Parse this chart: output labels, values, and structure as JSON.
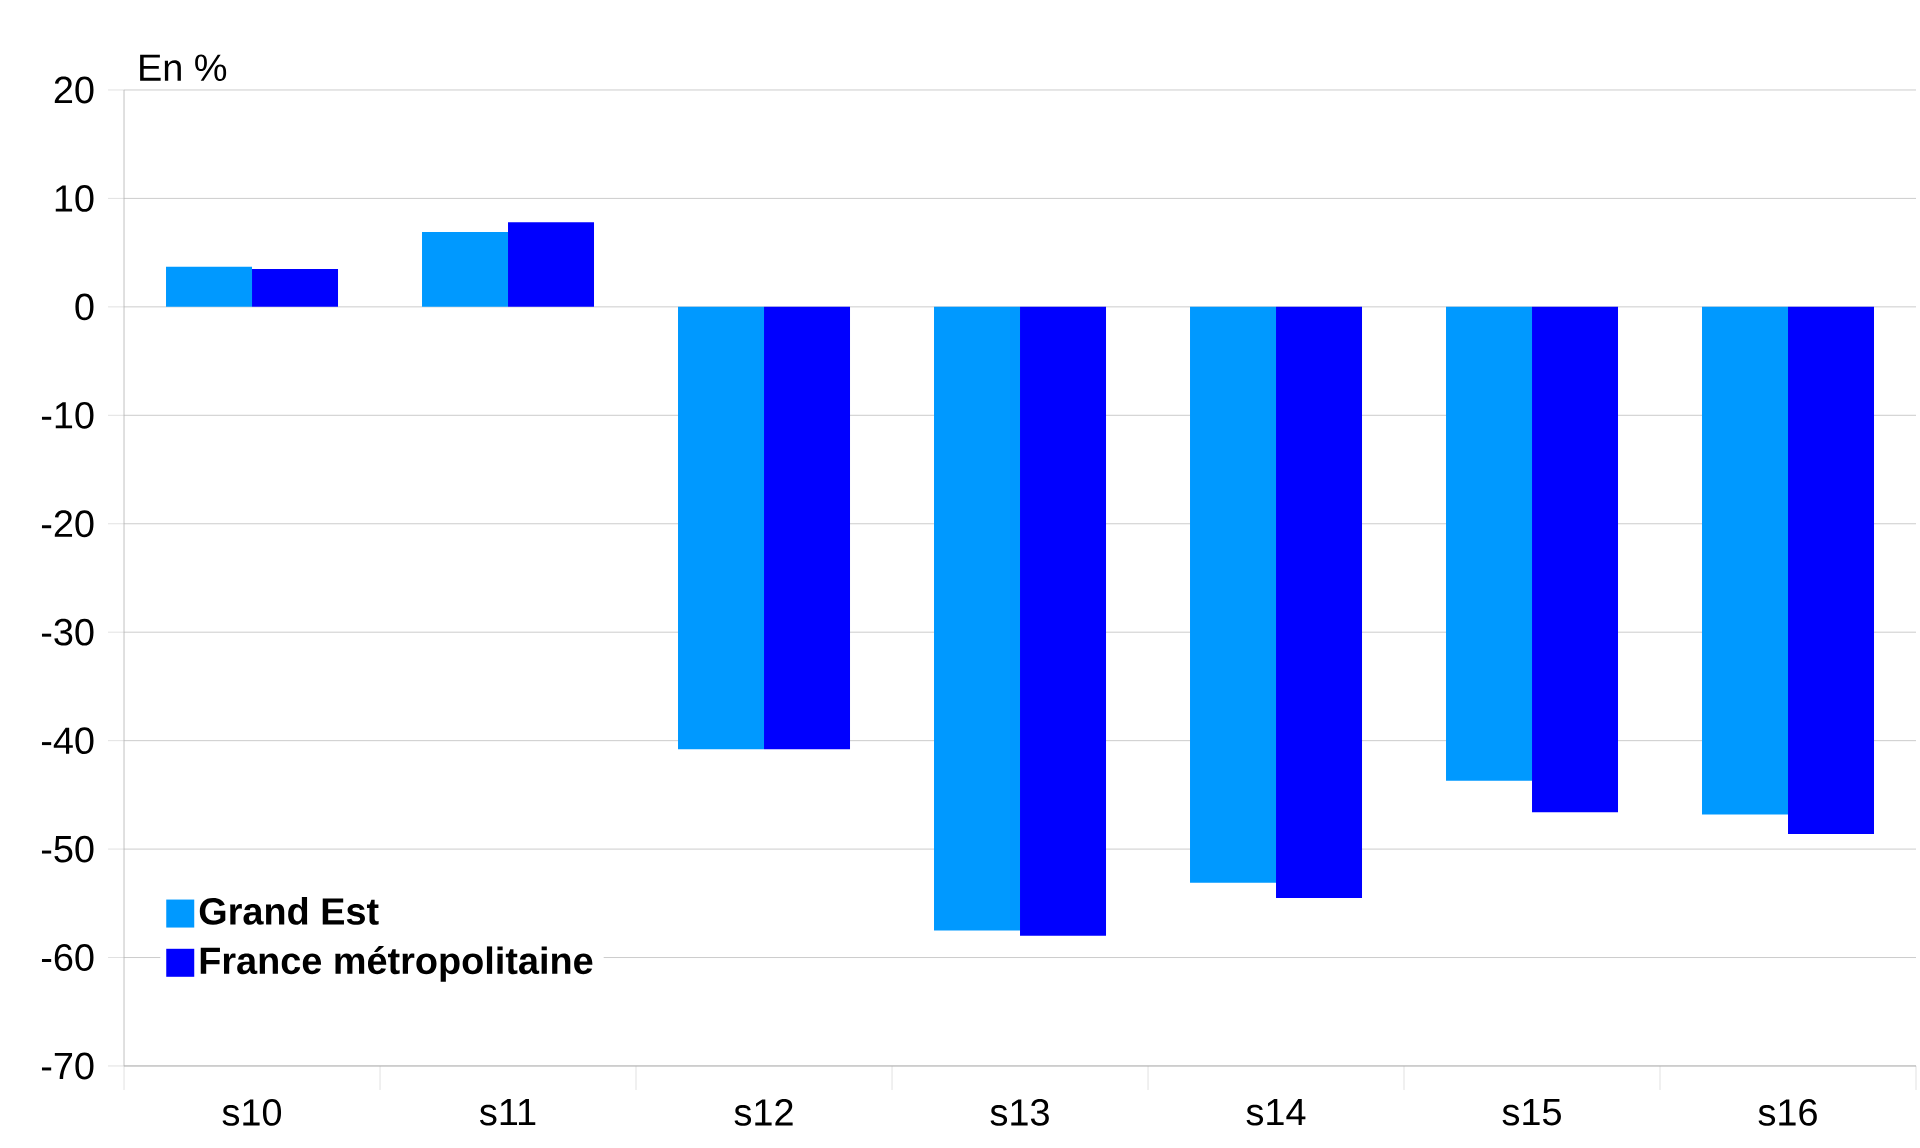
{
  "chart_data": {
    "type": "bar",
    "ylabel": "En %",
    "categories": [
      "s10",
      "s11",
      "s12",
      "s13",
      "s14",
      "s15",
      "s16"
    ],
    "series": [
      {
        "name": "Grand Est",
        "color": "#0099ff",
        "values": [
          3.7,
          6.9,
          -40.8,
          -57.5,
          -53.1,
          -43.7,
          -46.8
        ]
      },
      {
        "name": "France métropolitaine",
        "color": "#0000ff",
        "values": [
          3.5,
          7.8,
          -40.8,
          -58.0,
          -54.5,
          -46.6,
          -48.6
        ]
      }
    ],
    "ylim": [
      -70,
      20
    ],
    "yticks": [
      -70,
      -60,
      -50,
      -40,
      -30,
      -20,
      -10,
      0,
      10,
      20
    ],
    "grid": "y",
    "legend": "bottom left"
  }
}
